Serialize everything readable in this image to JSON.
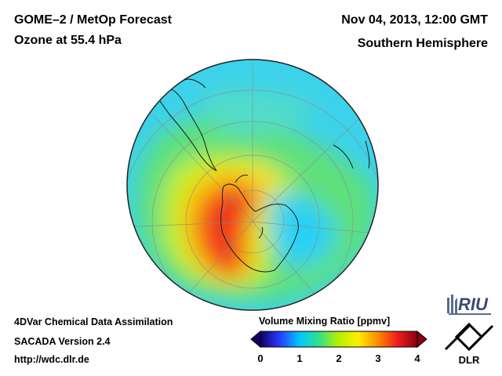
{
  "header": {
    "title_line1": "GOME–2 / MetOp Forecast",
    "title_line2": "Ozone at 55.4 hPa",
    "date": "Nov 04, 2013, 12:00 GMT",
    "hemisphere": "Southern Hemisphere"
  },
  "footer": {
    "line1": "4DVar Chemical Data Assimilation",
    "line2": "SACADA Version 2.4",
    "line3": "http://wdc.dlr.de"
  },
  "colorbar": {
    "title": "Volume Mixing Ratio [ppmv]",
    "min": 0,
    "max": 4,
    "ticks": [
      "0",
      "1",
      "2",
      "3",
      "4"
    ],
    "colors": [
      "#10006a",
      "#2a3cff",
      "#00c8ff",
      "#33e08a",
      "#b8f000",
      "#ffee00",
      "#ff8a00",
      "#ee1c1c",
      "#8a0010"
    ]
  },
  "logos": {
    "riu": "RIU",
    "dlr": "DLR"
  }
}
